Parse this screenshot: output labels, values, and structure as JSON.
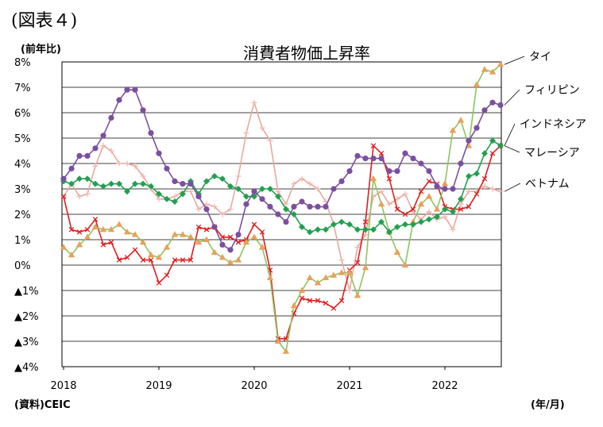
{
  "figure_label": "(図表４)",
  "source_note": "(資料)CEIC",
  "chart_data": {
    "type": "line",
    "title": "消費者物価上昇率",
    "ylabel": "(前年比)",
    "xlabel": "(年/月)",
    "ylim": [
      -4,
      8
    ],
    "y_ticks": [
      {
        "value": 8,
        "label": "8%"
      },
      {
        "value": 7,
        "label": "7%"
      },
      {
        "value": 6,
        "label": "6%"
      },
      {
        "value": 5,
        "label": "5%"
      },
      {
        "value": 4,
        "label": "4%"
      },
      {
        "value": 3,
        "label": "3%"
      },
      {
        "value": 2,
        "label": "2%"
      },
      {
        "value": 1,
        "label": "1%"
      },
      {
        "value": 0,
        "label": "0%"
      },
      {
        "value": -1,
        "label": "▲1%"
      },
      {
        "value": -2,
        "label": "▲2%"
      },
      {
        "value": -3,
        "label": "▲3%"
      },
      {
        "value": -4,
        "label": "▲4%"
      }
    ],
    "x_ticks": [
      "2018",
      "2019",
      "2020",
      "2021",
      "2022"
    ],
    "x_start": "2018-01",
    "grid": "horizontal",
    "legend": "direct labels at right end of lines",
    "series": [
      {
        "name": "タイ",
        "color": "#e8a05a",
        "line_color": "#8dc55f",
        "marker": "triangle",
        "values": [
          0.7,
          0.4,
          0.8,
          1.1,
          1.5,
          1.4,
          1.4,
          1.6,
          1.3,
          1.2,
          0.9,
          0.4,
          0.3,
          0.7,
          1.2,
          1.2,
          1.1,
          0.9,
          1.0,
          0.5,
          0.3,
          0.1,
          0.2,
          0.9,
          1.1,
          0.7,
          -0.5,
          -3.0,
          -3.4,
          -1.6,
          -1.0,
          -0.5,
          -0.7,
          -0.5,
          -0.4,
          -0.3,
          -0.3,
          -1.2,
          -0.1,
          3.4,
          2.4,
          1.3,
          0.5,
          0.0,
          1.7,
          2.4,
          2.7,
          2.2,
          3.2,
          5.3,
          5.7,
          4.7,
          7.1,
          7.7,
          7.6,
          7.9
        ]
      },
      {
        "name": "フィリピン",
        "color": "#7b4fa0",
        "marker": "circle",
        "values": [
          3.4,
          3.8,
          4.3,
          4.3,
          4.6,
          5.1,
          5.8,
          6.5,
          6.9,
          6.9,
          6.1,
          5.2,
          4.4,
          3.8,
          3.3,
          3.2,
          3.2,
          2.7,
          2.2,
          1.5,
          0.8,
          0.6,
          1.2,
          2.4,
          2.9,
          2.6,
          2.3,
          2.0,
          1.7,
          2.3,
          2.5,
          2.3,
          2.3,
          2.3,
          3.0,
          3.3,
          3.7,
          4.3,
          4.2,
          4.2,
          4.2,
          3.7,
          3.7,
          4.4,
          4.2,
          4.0,
          3.7,
          3.1,
          3.0,
          3.0,
          4.0,
          4.9,
          5.4,
          6.1,
          6.4,
          6.3
        ]
      },
      {
        "name": "インドネシア",
        "color": "#22a050",
        "marker": "diamond",
        "values": [
          3.3,
          3.2,
          3.4,
          3.4,
          3.2,
          3.1,
          3.2,
          3.2,
          2.9,
          3.2,
          3.2,
          3.1,
          2.8,
          2.6,
          2.5,
          2.8,
          3.3,
          2.8,
          3.3,
          3.5,
          3.4,
          3.1,
          3.0,
          2.7,
          2.7,
          3.0,
          3.0,
          2.7,
          2.2,
          2.0,
          1.5,
          1.3,
          1.4,
          1.4,
          1.6,
          1.7,
          1.6,
          1.4,
          1.4,
          1.4,
          1.7,
          1.3,
          1.5,
          1.6,
          1.6,
          1.7,
          1.8,
          1.9,
          2.2,
          2.1,
          2.6,
          3.5,
          3.6,
          4.4,
          4.9,
          4.7
        ]
      },
      {
        "name": "マレーシア",
        "color": "#e11c1c",
        "marker": "cross",
        "values": [
          2.7,
          1.4,
          1.3,
          1.4,
          1.8,
          0.8,
          0.9,
          0.2,
          0.3,
          0.6,
          0.2,
          0.2,
          -0.7,
          -0.4,
          0.2,
          0.2,
          0.2,
          1.5,
          1.4,
          1.5,
          1.1,
          1.1,
          0.9,
          1.0,
          1.6,
          1.3,
          -0.2,
          -2.9,
          -2.9,
          -1.9,
          -1.3,
          -1.4,
          -1.4,
          -1.5,
          -1.7,
          -1.4,
          -0.2,
          0.1,
          1.7,
          4.7,
          4.4,
          3.4,
          2.2,
          2.0,
          2.2,
          2.9,
          3.3,
          3.2,
          2.3,
          2.2,
          2.2,
          2.3,
          2.8,
          3.4,
          4.4,
          4.7
        ]
      },
      {
        "name": "ベトナム",
        "color": "#f2b8b0",
        "line_color": "#e8a89c",
        "marker": "dash",
        "values": [
          2.7,
          3.2,
          2.7,
          2.8,
          3.9,
          4.7,
          4.5,
          4.0,
          4.0,
          3.9,
          3.5,
          3.0,
          2.6,
          2.6,
          2.7,
          2.9,
          2.9,
          2.2,
          2.4,
          2.3,
          2.0,
          2.2,
          3.5,
          5.2,
          6.4,
          5.4,
          4.9,
          2.9,
          2.4,
          3.2,
          3.4,
          3.2,
          3.0,
          2.5,
          1.6,
          0.2,
          -1.0,
          0.7,
          1.2,
          2.7,
          2.9,
          2.4,
          2.6,
          2.8,
          2.1,
          1.8,
          2.1,
          1.8,
          1.9,
          1.4,
          2.4,
          2.9,
          2.9,
          3.1,
          3.0,
          2.9
        ]
      }
    ]
  }
}
